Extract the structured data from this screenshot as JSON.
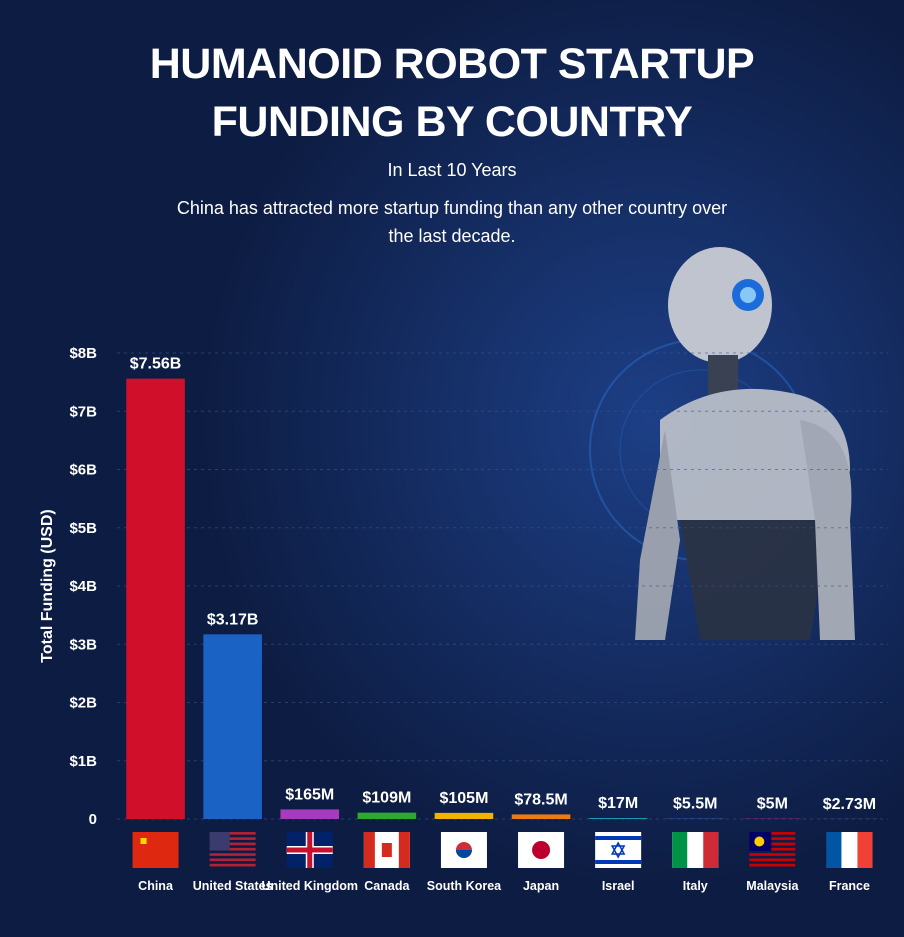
{
  "chart_data": {
    "type": "bar",
    "title": [
      "HUMANOID ROBOT STARTUP",
      "FUNDING BY COUNTRY"
    ],
    "subtitle": "In Last 10 Years",
    "description": "China has attracted more startup funding than any other country over the last decade.",
    "y_label": "Total Funding (USD)",
    "categories": [
      "China",
      "United States",
      "United Kingdom",
      "Canada",
      "South Korea",
      "Japan",
      "Israel",
      "Italy",
      "Malaysia",
      "France"
    ],
    "values": [
      7.56,
      3.17,
      0.165,
      0.109,
      0.105,
      0.0785,
      0.017,
      0.0055,
      0.005,
      0.00273
    ],
    "value_labels": [
      "$7.56B",
      "$3.17B",
      "$165M",
      "$109M",
      "$105M",
      "$78.5M",
      "$17M",
      "$5.5M",
      "$5M",
      "$2.73M"
    ],
    "colors": [
      "#d0102a",
      "#1a63c4",
      "#a63bbd",
      "#2ea82e",
      "#f2b300",
      "#f07a12",
      "#1a9cb2",
      "#3a7ec8",
      "#c42aa8",
      "#8746c2"
    ],
    "ylim": [
      0,
      8
    ],
    "yticks": [
      0,
      {
        "value": 1,
        "label": "$1B"
      },
      {
        "value": 2,
        "label": "$2B"
      },
      {
        "value": 3,
        "label": "$3B"
      },
      {
        "value": 4,
        "label": "$4B"
      },
      {
        "value": 5,
        "label": "$5B"
      },
      {
        "value": 6,
        "label": "$6B"
      },
      {
        "value": 7,
        "label": "$7B"
      },
      {
        "value": 8,
        "label": "$8B"
      }
    ],
    "grid": true
  }
}
